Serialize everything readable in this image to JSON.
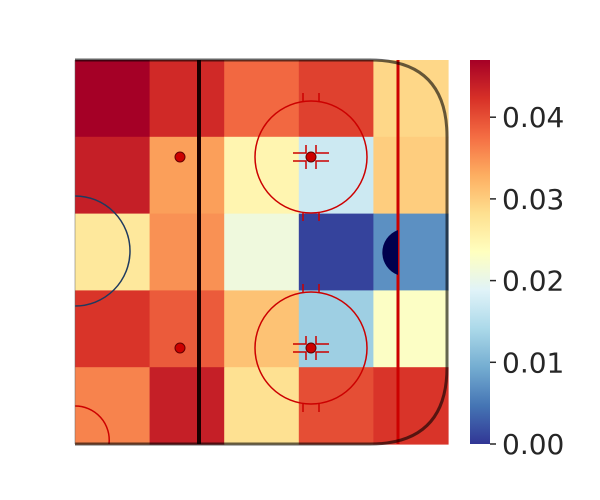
{
  "chart_data": {
    "type": "heatmap",
    "title": "",
    "xlabel": "",
    "ylabel": "",
    "columns": 5,
    "rows": 5,
    "values": [
      [
        0.047,
        0.043,
        0.038,
        0.041,
        0.029
      ],
      [
        0.044,
        0.034,
        0.025,
        0.017,
        0.03
      ],
      [
        0.027,
        0.035,
        0.021,
        0.001,
        0.007
      ],
      [
        0.042,
        0.039,
        0.031,
        0.013,
        0.023
      ],
      [
        0.036,
        0.044,
        0.028,
        0.04,
        0.042
      ]
    ],
    "colorbar": {
      "min": 0.0,
      "max": 0.047,
      "ticks": [
        0.0,
        0.01,
        0.02,
        0.03,
        0.04
      ],
      "tick_labels": [
        "0.00",
        "0.01",
        "0.02",
        "0.03",
        "0.04"
      ],
      "colormap": "RdYlBu_r"
    },
    "background": "ice-hockey-offensive-zone",
    "grid": false,
    "legend": "colorbar-right"
  },
  "colors": {
    "rink_lines": "#cc0000",
    "boards": "#000000",
    "goal_crease": "#00004d"
  }
}
